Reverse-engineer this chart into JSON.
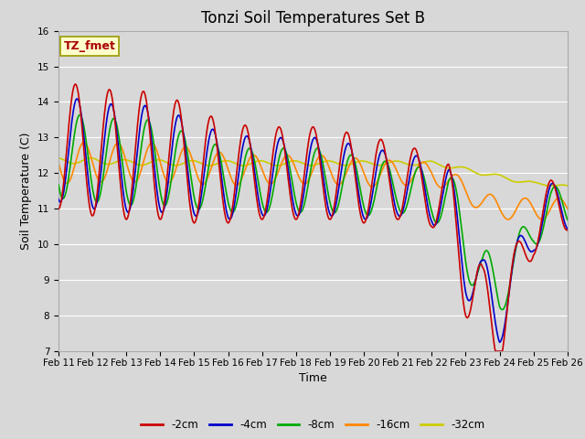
{
  "title": "Tonzi Soil Temperatures Set B",
  "xlabel": "Time",
  "ylabel": "Soil Temperature (C)",
  "ylim": [
    7.0,
    16.0
  ],
  "yticks": [
    7.0,
    8.0,
    9.0,
    10.0,
    11.0,
    12.0,
    13.0,
    14.0,
    15.0,
    16.0
  ],
  "xtick_labels": [
    "Feb 11",
    "Feb 12",
    "Feb 13",
    "Feb 14",
    "Feb 15",
    "Feb 16",
    "Feb 17",
    "Feb 18",
    "Feb 19",
    "Feb 20",
    "Feb 21",
    "Feb 22",
    "Feb 23",
    "Feb 24",
    "Feb 25",
    "Feb 26"
  ],
  "annotation_text": "TZ_fmet",
  "annotation_bg": "#ffffcc",
  "annotation_border": "#999900",
  "annotation_color": "#aa0000",
  "series": {
    "neg2cm": {
      "label": "-2cm",
      "color": "#cc0000",
      "lw": 1.2
    },
    "neg4cm": {
      "label": "-4cm",
      "color": "#0000cc",
      "lw": 1.2
    },
    "neg8cm": {
      "label": "-8cm",
      "color": "#00aa00",
      "lw": 1.2
    },
    "neg16cm": {
      "label": "-16cm",
      "color": "#ff8800",
      "lw": 1.2
    },
    "neg32cm": {
      "label": "-32cm",
      "color": "#cccc00",
      "lw": 1.2
    }
  },
  "fig_bg": "#d8d8d8",
  "plot_bg": "#d8d8d8",
  "grid_color": "#ffffff",
  "title_fontsize": 12,
  "axis_label_fontsize": 9,
  "tick_fontsize": 7.5,
  "legend_fontsize": 8.5
}
